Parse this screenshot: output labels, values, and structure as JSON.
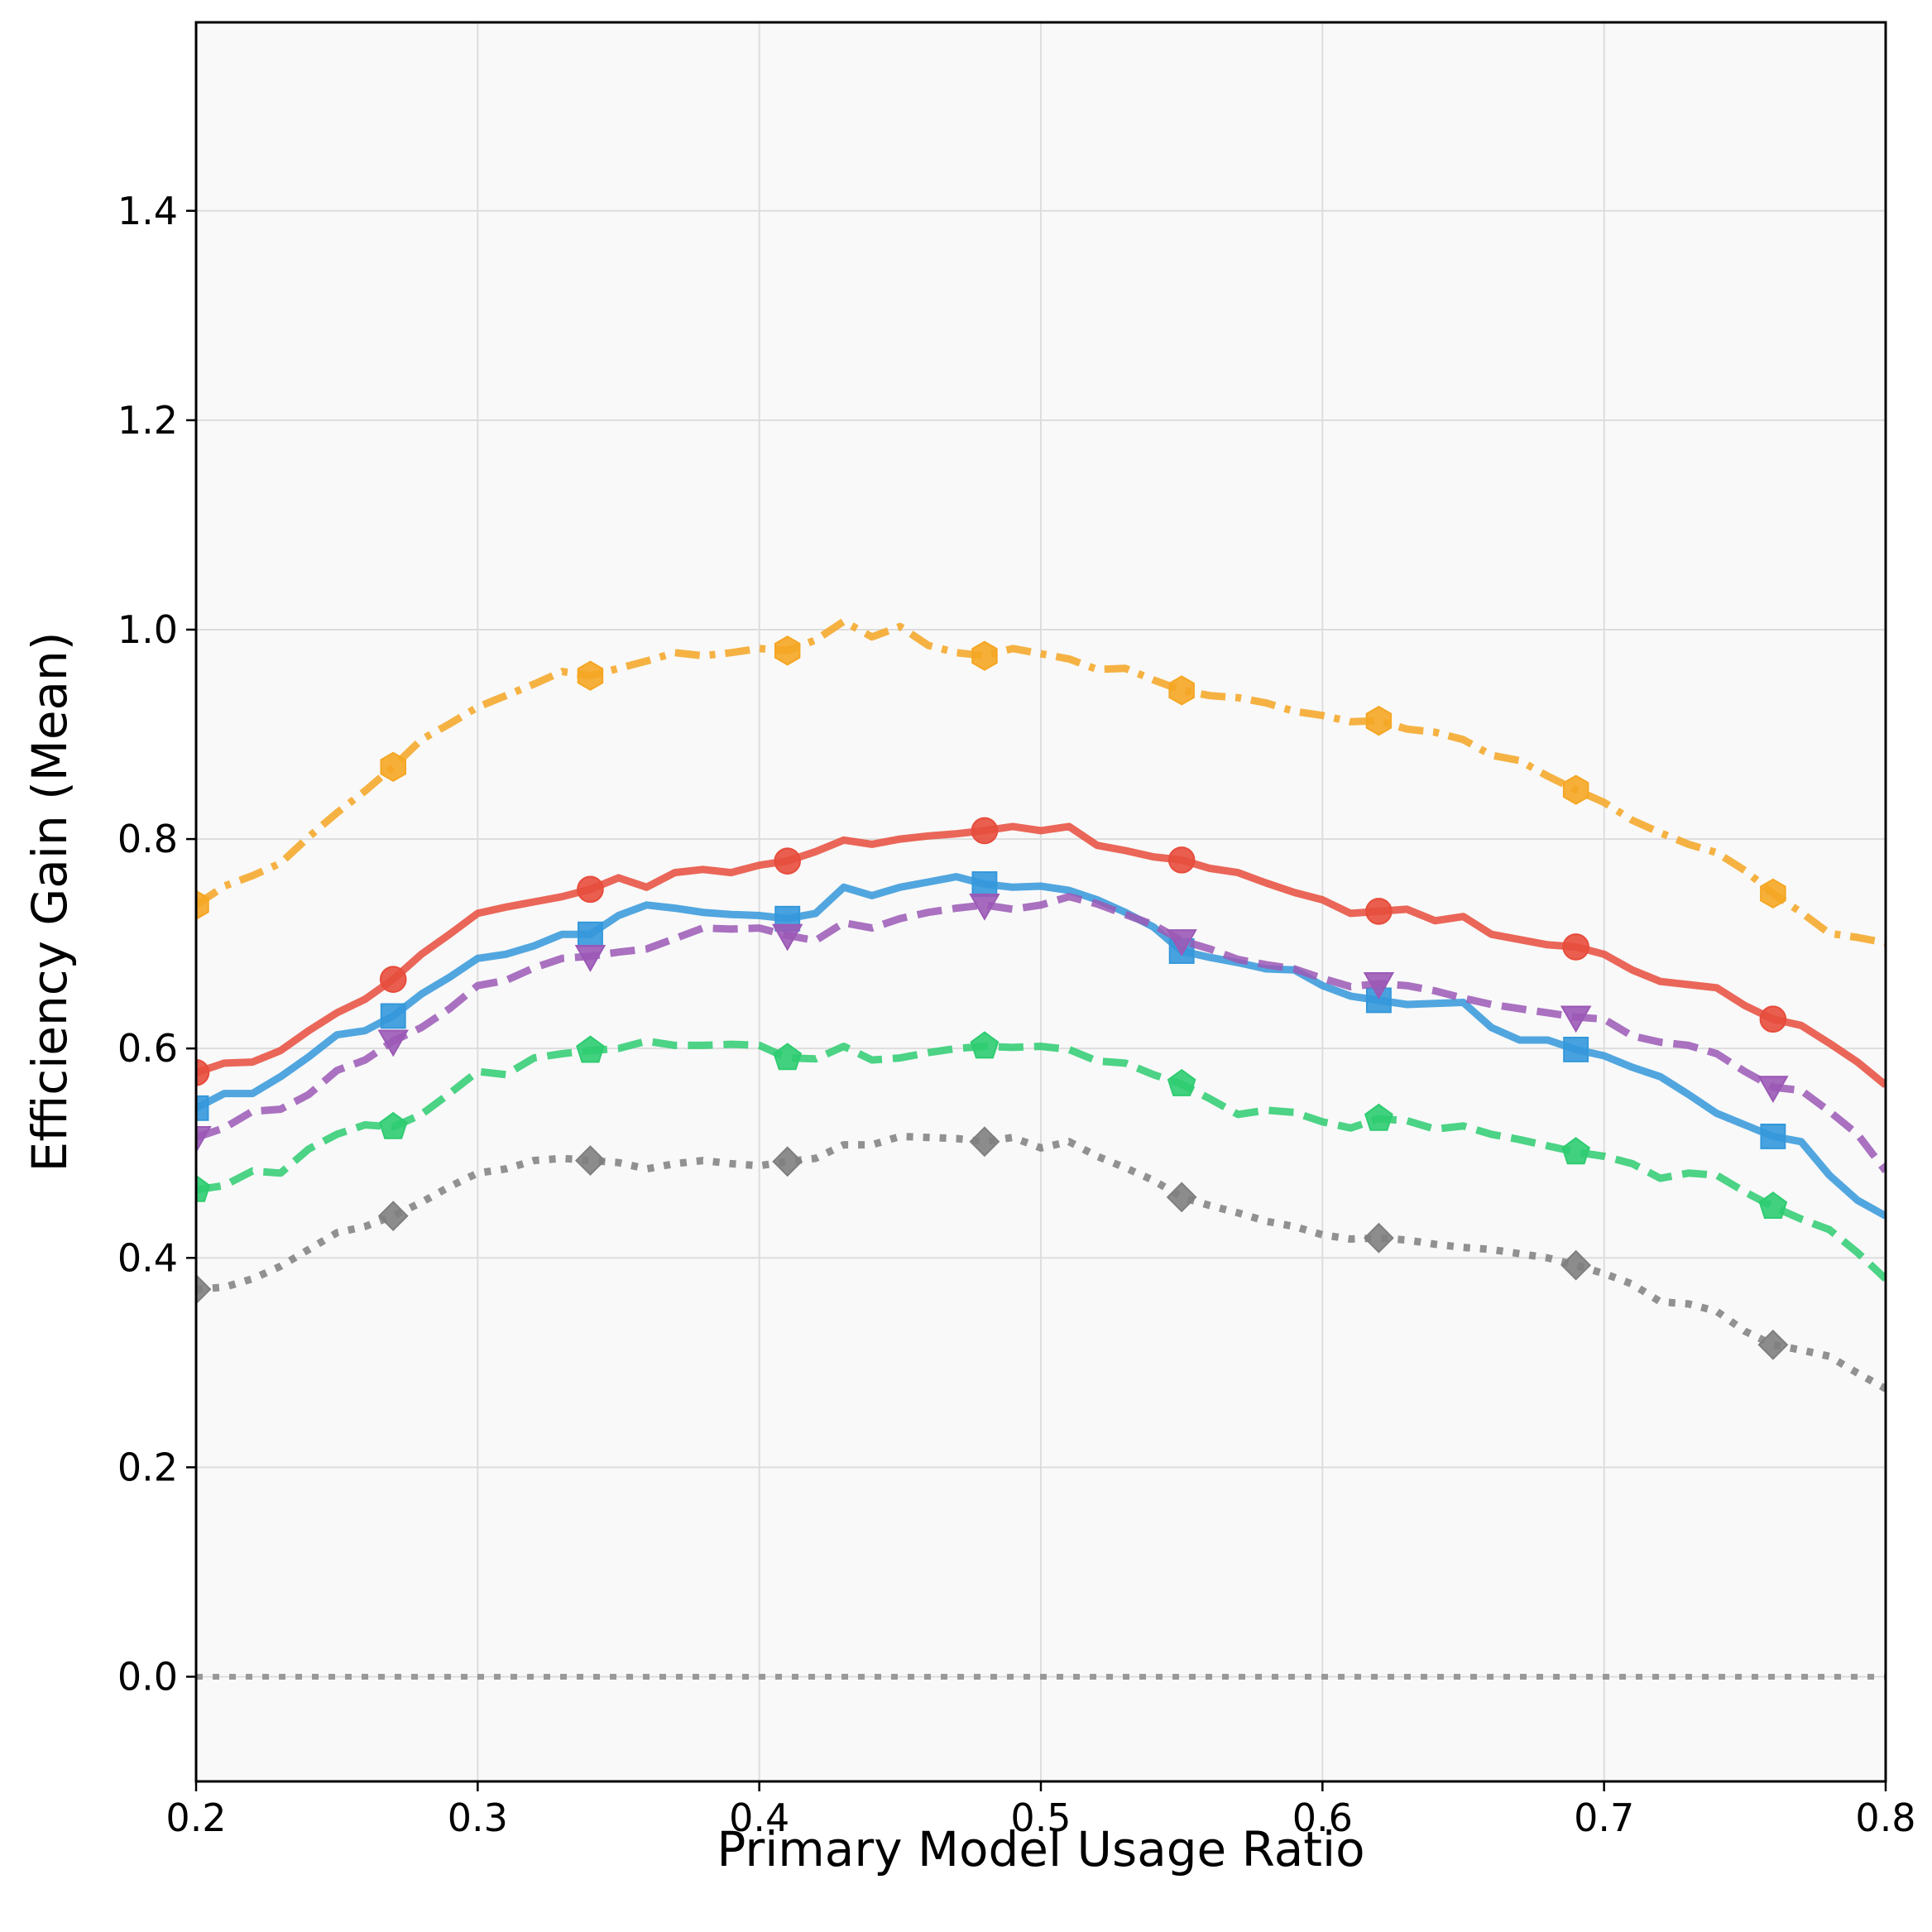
{
  "chart_data": {
    "type": "line",
    "title": "",
    "xlabel": "Primary Model Usage Ratio",
    "ylabel": "Efficiency Gain (Mean)",
    "xlim": [
      0.2,
      0.8
    ],
    "ylim": [
      -0.1,
      1.58
    ],
    "xticks": [
      0.2,
      0.3,
      0.4,
      0.5,
      0.6,
      0.7,
      0.8
    ],
    "xtick_labels": [
      "0.2",
      "0.3",
      "0.4",
      "0.5",
      "0.6",
      "0.7",
      "0.8"
    ],
    "yticks": [
      0.0,
      0.2,
      0.4,
      0.6,
      0.8,
      1.0,
      1.2,
      1.4
    ],
    "ytick_labels": [
      "0.0",
      "0.2",
      "0.4",
      "0.6",
      "0.8",
      "1.0",
      "1.2",
      "1.4"
    ],
    "grid": true,
    "legend": "none",
    "reference_line": {
      "y": 0.0,
      "color": "#999999",
      "style": "dotted"
    },
    "series": [
      {
        "name": "orange (hexagon, dash-dot)",
        "color": "#F5A623",
        "style": "dashdot",
        "marker": "hexagon",
        "x": [
          0.2,
          0.21,
          0.22,
          0.23,
          0.24,
          0.25,
          0.26,
          0.27,
          0.28,
          0.29,
          0.3,
          0.31,
          0.32,
          0.33,
          0.34,
          0.35,
          0.36,
          0.37,
          0.38,
          0.39,
          0.4,
          0.41,
          0.42,
          0.43,
          0.44,
          0.45,
          0.46,
          0.47,
          0.48,
          0.49,
          0.5,
          0.51,
          0.52,
          0.53,
          0.54,
          0.55,
          0.56,
          0.57,
          0.58,
          0.59,
          0.6,
          0.61,
          0.62,
          0.63,
          0.64,
          0.65,
          0.66,
          0.67,
          0.68,
          0.69,
          0.7,
          0.71,
          0.72,
          0.73,
          0.74,
          0.75,
          0.76,
          0.77,
          0.78,
          0.79,
          0.8
        ],
        "y": [
          0.737,
          0.755,
          0.765,
          0.777,
          0.802,
          0.825,
          0.846,
          0.869,
          0.895,
          0.91,
          0.926,
          0.937,
          0.948,
          0.96,
          0.956,
          0.963,
          0.97,
          0.978,
          0.975,
          0.978,
          0.982,
          0.98,
          0.99,
          1.008,
          0.993,
          1.003,
          0.985,
          0.978,
          0.975,
          0.982,
          0.977,
          0.972,
          0.962,
          0.963,
          0.952,
          0.942,
          0.937,
          0.935,
          0.93,
          0.922,
          0.918,
          0.912,
          0.913,
          0.905,
          0.902,
          0.895,
          0.88,
          0.875,
          0.86,
          0.847,
          0.835,
          0.818,
          0.806,
          0.795,
          0.787,
          0.77,
          0.748,
          0.73,
          0.71,
          0.706,
          0.701
        ],
        "markers_x": [
          0.2,
          0.27,
          0.34,
          0.41,
          0.48,
          0.55,
          0.62,
          0.69,
          0.76
        ]
      },
      {
        "name": "red (circle, solid)",
        "color": "#E74C3C",
        "style": "solid",
        "marker": "circle",
        "x": [
          0.2,
          0.21,
          0.22,
          0.23,
          0.24,
          0.25,
          0.26,
          0.27,
          0.28,
          0.29,
          0.3,
          0.31,
          0.32,
          0.33,
          0.34,
          0.35,
          0.36,
          0.37,
          0.38,
          0.39,
          0.4,
          0.41,
          0.42,
          0.43,
          0.44,
          0.45,
          0.46,
          0.47,
          0.48,
          0.49,
          0.5,
          0.51,
          0.52,
          0.53,
          0.54,
          0.55,
          0.56,
          0.57,
          0.58,
          0.59,
          0.6,
          0.61,
          0.62,
          0.63,
          0.64,
          0.65,
          0.66,
          0.67,
          0.68,
          0.69,
          0.7,
          0.71,
          0.72,
          0.73,
          0.74,
          0.75,
          0.76,
          0.77,
          0.78,
          0.79,
          0.8
        ],
        "y": [
          0.577,
          0.586,
          0.587,
          0.598,
          0.617,
          0.634,
          0.647,
          0.666,
          0.69,
          0.709,
          0.729,
          0.735,
          0.74,
          0.745,
          0.752,
          0.763,
          0.754,
          0.768,
          0.771,
          0.768,
          0.775,
          0.779,
          0.788,
          0.799,
          0.795,
          0.8,
          0.803,
          0.805,
          0.808,
          0.812,
          0.808,
          0.812,
          0.794,
          0.789,
          0.783,
          0.78,
          0.772,
          0.768,
          0.758,
          0.749,
          0.742,
          0.729,
          0.731,
          0.733,
          0.722,
          0.726,
          0.709,
          0.704,
          0.699,
          0.697,
          0.69,
          0.675,
          0.664,
          0.661,
          0.658,
          0.641,
          0.628,
          0.622,
          0.605,
          0.587,
          0.565
        ],
        "markers_x": [
          0.2,
          0.27,
          0.34,
          0.41,
          0.48,
          0.55,
          0.62,
          0.69,
          0.76
        ]
      },
      {
        "name": "blue (square, solid)",
        "color": "#3498DB",
        "style": "solid",
        "marker": "square",
        "x": [
          0.2,
          0.21,
          0.22,
          0.23,
          0.24,
          0.25,
          0.26,
          0.27,
          0.28,
          0.29,
          0.3,
          0.31,
          0.32,
          0.33,
          0.34,
          0.35,
          0.36,
          0.37,
          0.38,
          0.39,
          0.4,
          0.41,
          0.42,
          0.43,
          0.44,
          0.45,
          0.46,
          0.47,
          0.48,
          0.49,
          0.5,
          0.51,
          0.52,
          0.53,
          0.54,
          0.55,
          0.56,
          0.57,
          0.58,
          0.59,
          0.6,
          0.61,
          0.62,
          0.63,
          0.64,
          0.65,
          0.66,
          0.67,
          0.68,
          0.69,
          0.7,
          0.71,
          0.72,
          0.73,
          0.74,
          0.75,
          0.76,
          0.77,
          0.78,
          0.79,
          0.8
        ],
        "y": [
          0.543,
          0.557,
          0.557,
          0.573,
          0.592,
          0.613,
          0.617,
          0.631,
          0.652,
          0.668,
          0.686,
          0.69,
          0.698,
          0.709,
          0.709,
          0.727,
          0.737,
          0.734,
          0.73,
          0.728,
          0.727,
          0.724,
          0.729,
          0.754,
          0.746,
          0.754,
          0.759,
          0.764,
          0.757,
          0.754,
          0.755,
          0.751,
          0.742,
          0.73,
          0.716,
          0.693,
          0.687,
          0.682,
          0.676,
          0.675,
          0.66,
          0.65,
          0.646,
          0.642,
          0.643,
          0.644,
          0.62,
          0.608,
          0.608,
          0.599,
          0.593,
          0.582,
          0.573,
          0.556,
          0.538,
          0.527,
          0.516,
          0.511,
          0.479,
          0.455,
          0.44
        ],
        "markers_x": [
          0.2,
          0.27,
          0.34,
          0.41,
          0.48,
          0.55,
          0.62,
          0.69,
          0.76
        ]
      },
      {
        "name": "purple (triangle-down, dashed)",
        "color": "#9B59B6",
        "style": "dashed",
        "marker": "triangle-down",
        "x": [
          0.2,
          0.21,
          0.22,
          0.23,
          0.24,
          0.25,
          0.26,
          0.27,
          0.28,
          0.29,
          0.3,
          0.31,
          0.32,
          0.33,
          0.34,
          0.35,
          0.36,
          0.37,
          0.38,
          0.39,
          0.4,
          0.41,
          0.42,
          0.43,
          0.44,
          0.45,
          0.46,
          0.47,
          0.48,
          0.49,
          0.5,
          0.51,
          0.52,
          0.53,
          0.54,
          0.55,
          0.56,
          0.57,
          0.58,
          0.59,
          0.6,
          0.61,
          0.62,
          0.63,
          0.64,
          0.65,
          0.66,
          0.67,
          0.68,
          0.69,
          0.7,
          0.71,
          0.72,
          0.73,
          0.74,
          0.75,
          0.76,
          0.77,
          0.78,
          0.79,
          0.8
        ],
        "y": [
          0.515,
          0.524,
          0.54,
          0.542,
          0.556,
          0.579,
          0.589,
          0.607,
          0.62,
          0.638,
          0.66,
          0.665,
          0.677,
          0.686,
          0.688,
          0.692,
          0.695,
          0.705,
          0.715,
          0.714,
          0.715,
          0.708,
          0.703,
          0.72,
          0.715,
          0.724,
          0.73,
          0.734,
          0.737,
          0.733,
          0.737,
          0.745,
          0.738,
          0.728,
          0.718,
          0.703,
          0.695,
          0.685,
          0.68,
          0.676,
          0.667,
          0.659,
          0.662,
          0.66,
          0.655,
          0.648,
          0.642,
          0.638,
          0.634,
          0.63,
          0.628,
          0.612,
          0.606,
          0.603,
          0.595,
          0.578,
          0.563,
          0.56,
          0.54,
          0.518,
          0.483
        ],
        "markers_x": [
          0.2,
          0.27,
          0.34,
          0.41,
          0.48,
          0.55,
          0.62,
          0.69,
          0.76
        ]
      },
      {
        "name": "green (pentagon, dashed)",
        "color": "#2ECC71",
        "style": "dashed",
        "marker": "pentagon",
        "x": [
          0.2,
          0.21,
          0.22,
          0.23,
          0.24,
          0.25,
          0.26,
          0.27,
          0.28,
          0.29,
          0.3,
          0.31,
          0.32,
          0.33,
          0.34,
          0.35,
          0.36,
          0.37,
          0.38,
          0.39,
          0.4,
          0.41,
          0.42,
          0.43,
          0.44,
          0.45,
          0.46,
          0.47,
          0.48,
          0.49,
          0.5,
          0.51,
          0.52,
          0.53,
          0.54,
          0.55,
          0.56,
          0.57,
          0.58,
          0.59,
          0.6,
          0.61,
          0.62,
          0.63,
          0.64,
          0.65,
          0.66,
          0.67,
          0.68,
          0.69,
          0.7,
          0.71,
          0.72,
          0.73,
          0.74,
          0.75,
          0.76,
          0.77,
          0.78,
          0.79,
          0.8
        ],
        "y": [
          0.465,
          0.469,
          0.483,
          0.481,
          0.504,
          0.518,
          0.527,
          0.525,
          0.537,
          0.557,
          0.578,
          0.575,
          0.591,
          0.595,
          0.598,
          0.6,
          0.607,
          0.603,
          0.603,
          0.604,
          0.603,
          0.591,
          0.59,
          0.602,
          0.589,
          0.591,
          0.596,
          0.6,
          0.602,
          0.601,
          0.602,
          0.599,
          0.588,
          0.586,
          0.575,
          0.566,
          0.552,
          0.537,
          0.541,
          0.539,
          0.53,
          0.524,
          0.533,
          0.531,
          0.523,
          0.526,
          0.518,
          0.513,
          0.507,
          0.501,
          0.497,
          0.49,
          0.476,
          0.481,
          0.479,
          0.463,
          0.449,
          0.437,
          0.427,
          0.405,
          0.38
        ],
        "markers_x": [
          0.2,
          0.27,
          0.34,
          0.41,
          0.48,
          0.55,
          0.62,
          0.69,
          0.76
        ]
      },
      {
        "name": "gray (diamond, dotted)",
        "color": "#7F7F7F",
        "style": "dotted",
        "marker": "diamond",
        "x": [
          0.2,
          0.21,
          0.22,
          0.23,
          0.24,
          0.25,
          0.26,
          0.27,
          0.28,
          0.29,
          0.3,
          0.31,
          0.32,
          0.33,
          0.34,
          0.35,
          0.36,
          0.37,
          0.38,
          0.39,
          0.4,
          0.41,
          0.42,
          0.43,
          0.44,
          0.45,
          0.46,
          0.47,
          0.48,
          0.49,
          0.5,
          0.51,
          0.52,
          0.53,
          0.54,
          0.55,
          0.56,
          0.57,
          0.58,
          0.59,
          0.6,
          0.61,
          0.62,
          0.63,
          0.64,
          0.65,
          0.66,
          0.67,
          0.68,
          0.69,
          0.7,
          0.71,
          0.72,
          0.73,
          0.74,
          0.75,
          0.76,
          0.77,
          0.78,
          0.79,
          0.8
        ],
        "y": [
          0.37,
          0.372,
          0.38,
          0.392,
          0.408,
          0.424,
          0.43,
          0.44,
          0.453,
          0.468,
          0.481,
          0.485,
          0.493,
          0.495,
          0.493,
          0.491,
          0.485,
          0.49,
          0.493,
          0.49,
          0.488,
          0.492,
          0.495,
          0.508,
          0.508,
          0.516,
          0.515,
          0.514,
          0.511,
          0.515,
          0.505,
          0.511,
          0.497,
          0.486,
          0.474,
          0.458,
          0.45,
          0.443,
          0.435,
          0.43,
          0.422,
          0.418,
          0.419,
          0.417,
          0.413,
          0.41,
          0.408,
          0.404,
          0.4,
          0.393,
          0.385,
          0.375,
          0.358,
          0.356,
          0.349,
          0.33,
          0.317,
          0.312,
          0.306,
          0.29,
          0.275
        ],
        "markers_x": [
          0.2,
          0.27,
          0.34,
          0.41,
          0.48,
          0.55,
          0.62,
          0.69,
          0.76
        ]
      }
    ]
  }
}
